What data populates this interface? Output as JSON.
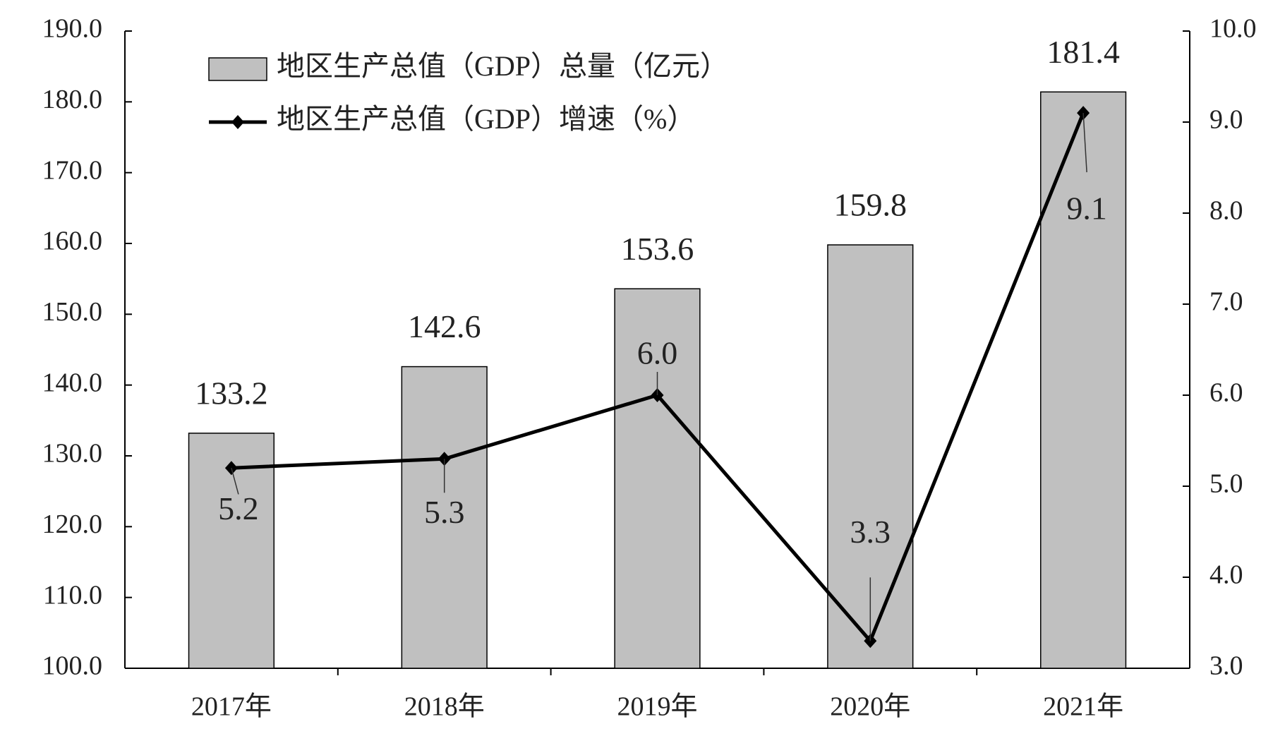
{
  "chart_data": {
    "type": "combo",
    "categories": [
      "2017年",
      "2018年",
      "2019年",
      "2020年",
      "2021年"
    ],
    "series": [
      {
        "name": "地区生产总值（GDP）总量（亿元）",
        "type": "bar",
        "color": "#c0c0c0",
        "values": [
          133.2,
          142.6,
          153.6,
          159.8,
          181.4
        ]
      },
      {
        "name": "地区生产总值（GDP）增速（%）",
        "type": "line",
        "axis": "y2",
        "color": "#000000",
        "values": [
          5.2,
          5.3,
          6.0,
          3.3,
          9.1
        ],
        "value_labels": [
          "5.2",
          "5.3",
          "6.0",
          "3.3",
          "9.1"
        ]
      }
    ],
    "ylim": [
      100,
      190
    ],
    "yticks": [
      {
        "value": 100,
        "label": "100.0"
      },
      {
        "value": 110,
        "label": "110.0"
      },
      {
        "value": 120,
        "label": "120.0"
      },
      {
        "value": 130,
        "label": "130.0"
      },
      {
        "value": 140,
        "label": "140.0"
      },
      {
        "value": 150,
        "label": "150.0"
      },
      {
        "value": 160,
        "label": "160.0"
      },
      {
        "value": 170,
        "label": "170.0"
      },
      {
        "value": 180,
        "label": "180.0"
      },
      {
        "value": 190,
        "label": "190.0"
      }
    ],
    "y2lim": [
      3,
      10
    ],
    "y2ticks": [
      {
        "value": 3,
        "label": "3.0"
      },
      {
        "value": 4,
        "label": "4.0"
      },
      {
        "value": 5,
        "label": "5.0"
      },
      {
        "value": 6,
        "label": "6.0"
      },
      {
        "value": 7,
        "label": "7.0"
      },
      {
        "value": 8,
        "label": "8.0"
      },
      {
        "value": 9,
        "label": "9.0"
      },
      {
        "value": 10,
        "label": "10.0"
      }
    ],
    "grid": false,
    "legend": "top-left"
  }
}
